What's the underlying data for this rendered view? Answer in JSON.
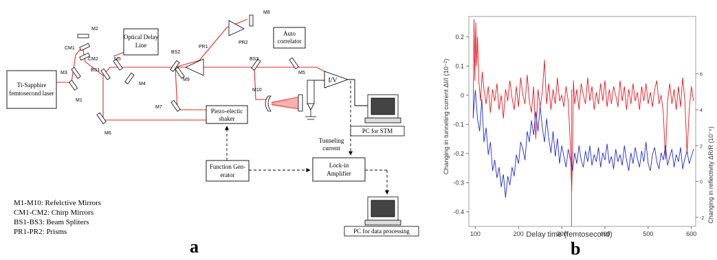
{
  "panel_a": {
    "label": "a",
    "components": {
      "laser": [
        "Ti-Sapphire",
        "femtosecond laser"
      ],
      "optical_delay": [
        "Optical Delay",
        "Line"
      ],
      "auto_correlator": [
        "Auto",
        "correlator"
      ],
      "piezo": [
        "Piezo-electic",
        "shaker"
      ],
      "iv": "I/V",
      "pc_stm": "PC for STM",
      "tunneling": [
        "Tunneling",
        "current"
      ],
      "function_gen": [
        "Function Gen-",
        "erator"
      ],
      "lockin": [
        "Lock-in",
        "Amplifier"
      ],
      "pc_data": "PC for data processing"
    },
    "optics_labels": {
      "M1": "M1",
      "M2": "M2",
      "M3": "M3",
      "M4": "M4",
      "M5": "M5",
      "M5b": "M5",
      "M6": "M6",
      "M7": "M7",
      "M8": "M8",
      "M9": "M9",
      "M10": "M10",
      "CM1": "CM1",
      "CM2": "CM2",
      "BS1": "BS1",
      "BS2": "BS2",
      "BS3": "BS3",
      "PR1": "PR1",
      "PR2": "PR2"
    },
    "legend": [
      "M1-M10: Refelctive Mirrors",
      "CM1-CM2: Chirp Mirrors",
      "BS1-BS3: Beam Spliters",
      "PR1-PR2: Prisms"
    ],
    "colors": {
      "beam": "#e0281e",
      "line": "#000000"
    }
  },
  "panel_b": {
    "label": "b",
    "chart_data": {
      "type": "line",
      "xlabel": "Delay time (femtosecond)",
      "ylabel_left": "Changing in tunneling current ΔI/I (10⁻²)",
      "ylabel_right": "Changing in reflectivity ΔR/R (10⁻⁶)",
      "xlim": [
        85,
        610
      ],
      "ylim_left": [
        -0.45,
        0.27
      ],
      "ylim_right": [
        -2.5,
        9.2
      ],
      "x_ticks": [
        "100",
        "200",
        "300",
        "400",
        "500",
        "600"
      ],
      "y_ticks_left": [
        "0.2",
        "0.1",
        "0",
        "-0.1",
        "-0.2",
        "-0.3",
        "-0.4"
      ],
      "y_ticks_right": [
        "6",
        "4",
        "2",
        "0",
        "-2"
      ],
      "series": [
        {
          "axis": "left",
          "color": "#e8141e",
          "x": [
            95,
            97,
            99,
            101,
            103,
            105,
            108,
            112,
            116,
            120,
            125,
            130,
            135,
            140,
            145,
            150,
            155,
            160,
            165,
            170,
            175,
            180,
            185,
            190,
            195,
            200,
            205,
            210,
            215,
            220,
            225,
            230,
            235,
            240,
            245,
            250,
            255,
            260,
            265,
            270,
            275,
            280,
            285,
            290,
            295,
            300,
            305,
            310,
            315,
            320,
            323,
            325,
            327,
            330,
            335,
            340,
            345,
            350,
            355,
            360,
            365,
            370,
            375,
            380,
            385,
            390,
            395,
            400,
            405,
            410,
            415,
            420,
            425,
            430,
            435,
            440,
            445,
            450,
            455,
            460,
            465,
            470,
            475,
            480,
            485,
            490,
            495,
            500,
            505,
            510,
            515,
            520,
            525,
            530,
            535,
            540,
            545,
            550,
            555,
            560,
            565,
            570,
            575,
            580,
            585,
            590,
            595,
            600,
            605
          ],
          "y": [
            -0.08,
            0.26,
            0.05,
            0.25,
            0.1,
            0.2,
            0.05,
            -0.02,
            0.08,
            0.02,
            -0.03,
            0.03,
            -0.06,
            0.02,
            -0.02,
            0.04,
            -0.05,
            0.0,
            -0.08,
            0.02,
            -0.02,
            0.05,
            -0.01,
            -0.05,
            0.03,
            -0.04,
            0.06,
            0.0,
            -0.03,
            0.07,
            -0.02,
            -0.06,
            0.03,
            -0.15,
            0.02,
            -0.04,
            0.01,
            0.12,
            -0.03,
            0.04,
            -0.05,
            0.02,
            -0.03,
            0.06,
            -0.02,
            0.0,
            -0.04,
            0.03,
            -0.02,
            -0.17,
            -0.33,
            -0.2,
            0.05,
            -0.03,
            0.02,
            -0.05,
            0.04,
            0.0,
            -0.03,
            0.06,
            -0.02,
            0.03,
            -0.05,
            0.01,
            -0.03,
            0.04,
            -0.02,
            0.05,
            -0.04,
            0.02,
            -0.03,
            0.03,
            0.0,
            -0.04,
            0.05,
            -0.02,
            0.03,
            -0.05,
            0.02,
            -0.03,
            0.04,
            -0.02,
            0.01,
            -0.05,
            0.03,
            -0.02,
            0.04,
            -0.03,
            0.01,
            -0.04,
            0.02,
            0.05,
            -0.03,
            0.0,
            -0.06,
            -0.22,
            -0.02,
            0.04,
            -0.03,
            0.02,
            -0.05,
            0.03,
            -0.04,
            0.06,
            -0.02,
            -0.2,
            -0.05,
            0.03,
            -0.02
          ]
        },
        {
          "axis": "right",
          "color": "#1e28d2",
          "x": [
            95,
            100,
            105,
            110,
            115,
            120,
            125,
            130,
            135,
            140,
            145,
            150,
            155,
            160,
            165,
            170,
            175,
            180,
            185,
            190,
            195,
            200,
            205,
            210,
            215,
            220,
            225,
            230,
            235,
            240,
            245,
            250,
            255,
            260,
            265,
            270,
            275,
            280,
            285,
            290,
            295,
            300,
            305,
            310,
            315,
            320,
            325,
            330,
            335,
            340,
            345,
            350,
            355,
            360,
            365,
            370,
            375,
            380,
            385,
            390,
            395,
            400,
            405,
            410,
            415,
            420,
            425,
            430,
            435,
            440,
            445,
            450,
            455,
            460,
            465,
            470,
            475,
            480,
            485,
            490,
            495,
            500,
            505,
            510,
            515,
            520,
            525,
            530,
            535,
            540,
            545,
            550,
            555,
            560,
            565,
            570,
            575,
            580,
            585,
            590,
            595,
            600,
            605
          ],
          "y": [
            3.6,
            5.1,
            3.5,
            2.8,
            4.6,
            2.2,
            3.0,
            1.5,
            2.2,
            0.6,
            1.2,
            0.2,
            0.8,
            -0.3,
            0.4,
            -0.9,
            0.3,
            -0.2,
            0.8,
            0.3,
            1.5,
            1.0,
            2.2,
            1.8,
            1.2,
            2.8,
            2.2,
            3.4,
            2.6,
            3.9,
            2.8,
            4.2,
            3.0,
            2.2,
            3.5,
            2.4,
            1.6,
            2.8,
            1.4,
            2.4,
            1.0,
            2.0,
            1.4,
            0.8,
            1.8,
            1.2,
            0.6,
            1.6,
            1.0,
            2.0,
            1.2,
            0.8,
            1.7,
            1.1,
            2.0,
            0.9,
            1.5,
            1.1,
            1.9,
            0.8,
            1.6,
            1.2,
            2.1,
            1.0,
            1.4,
            0.7,
            1.8,
            1.1,
            1.5,
            0.9,
            2.0,
            1.2,
            0.6,
            1.6,
            1.0,
            1.9,
            1.3,
            0.8,
            1.7,
            1.1,
            2.2,
            1.0,
            0.6,
            1.5,
            1.9,
            1.1,
            0.7,
            1.6,
            1.2,
            2.0,
            0.9,
            1.4,
            1.8,
            0.8,
            1.5,
            1.1,
            1.9,
            0.7,
            1.3,
            1.7,
            1.0,
            1.4,
            1.8
          ]
        }
      ]
    }
  }
}
